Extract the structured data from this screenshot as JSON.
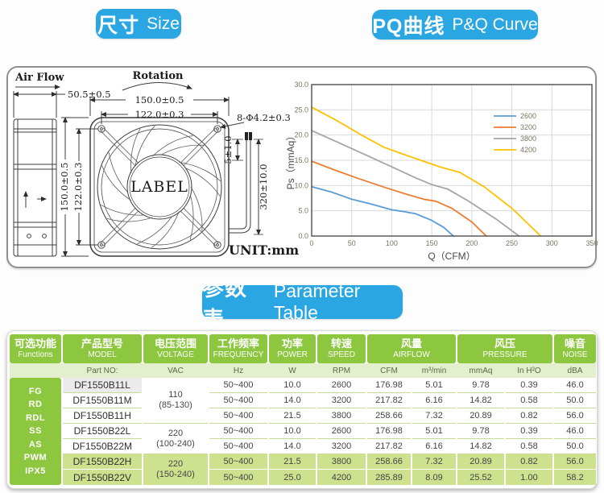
{
  "badges": {
    "size": {
      "zh": "尺寸",
      "en": "Size"
    },
    "pq": {
      "zh": "PQ曲线",
      "en": "P&Q Curve"
    },
    "param": {
      "zh": "参数表",
      "en": "Parameter Table"
    }
  },
  "colors": {
    "accent_blue": "#2aa7e2",
    "table_green": "#8dc63f",
    "units_row_green": "#e3efcd",
    "row_highlight_green": "#cde18f",
    "series_2600": "#5b9bd5",
    "series_3200": "#ed7d31",
    "series_3800": "#a5a5a5",
    "series_4200": "#ffc000"
  },
  "drawing": {
    "air_flow": "Air Flow",
    "rotation": "Rotation",
    "dim_depth": "50.5±0.5",
    "dim_outer_width": "150.0±0.5",
    "dim_hole_pitch_h": "122.0±0.3",
    "dim_holes": "8-Φ4.2±0.3",
    "dim_outer_height": "150.0±0.5",
    "dim_hole_pitch_v": "122.0±0.3",
    "dim_wire_strip": "5±1.0",
    "dim_wire_length": "320±10.0",
    "hub_label": "LABEL",
    "unit": "UNIT:mm"
  },
  "chart_data": {
    "type": "line",
    "xlabel": "Q（CFM）",
    "ylabel": "Ps（mmAq）",
    "xlim": [
      0,
      350
    ],
    "ylim": [
      0,
      30
    ],
    "xticks": [
      0,
      50,
      100,
      150,
      200,
      250,
      300,
      350
    ],
    "yticks": [
      "0.0",
      "5.0",
      "10.0",
      "15.0",
      "20.0",
      "25.0",
      "30.0"
    ],
    "grid": true,
    "legend_position": "upper-right-inside",
    "series": [
      {
        "name": "2600",
        "color": "#5b9bd5",
        "points": [
          [
            0,
            9.78
          ],
          [
            25,
            8.7
          ],
          [
            50,
            7.3
          ],
          [
            75,
            6.3
          ],
          [
            100,
            5.2
          ],
          [
            115,
            4.85
          ],
          [
            130,
            4.4
          ],
          [
            150,
            3.1
          ],
          [
            165,
            1.7
          ],
          [
            177,
            0
          ]
        ]
      },
      {
        "name": "3200",
        "color": "#ed7d31",
        "points": [
          [
            0,
            14.82
          ],
          [
            30,
            13.0
          ],
          [
            60,
            11.3
          ],
          [
            90,
            9.7
          ],
          [
            120,
            8.2
          ],
          [
            140,
            7.3
          ],
          [
            155,
            6.9
          ],
          [
            175,
            5.5
          ],
          [
            200,
            2.8
          ],
          [
            218,
            0
          ]
        ]
      },
      {
        "name": "3800",
        "color": "#a5a5a5",
        "points": [
          [
            0,
            20.89
          ],
          [
            35,
            18.4
          ],
          [
            70,
            15.9
          ],
          [
            100,
            13.7
          ],
          [
            130,
            11.5
          ],
          [
            150,
            10.2
          ],
          [
            170,
            9.3
          ],
          [
            195,
            7.0
          ],
          [
            230,
            3.4
          ],
          [
            259,
            0
          ]
        ]
      },
      {
        "name": "4200",
        "color": "#ffc000",
        "points": [
          [
            0,
            25.52
          ],
          [
            30,
            23.0
          ],
          [
            60,
            20.2
          ],
          [
            90,
            17.6
          ],
          [
            120,
            15.9
          ],
          [
            160,
            13.7
          ],
          [
            185,
            12.6
          ],
          [
            215,
            9.8
          ],
          [
            250,
            5.5
          ],
          [
            286,
            0
          ]
        ]
      }
    ]
  },
  "table": {
    "header": [
      {
        "zh": "可选功能",
        "en": "Functions",
        "span": 1
      },
      {
        "zh": "产品型号",
        "en": "MODEL",
        "span": 1
      },
      {
        "zh": "电压范围",
        "en": "VOLTAGE",
        "span": 1
      },
      {
        "zh": "工作频率",
        "en": "FREQUENCY",
        "span": 1
      },
      {
        "zh": "功率",
        "en": "POWER",
        "span": 1
      },
      {
        "zh": "转速",
        "en": "SPEED",
        "span": 1
      },
      {
        "zh": "风量",
        "en": "AIRFLOW",
        "span": 2
      },
      {
        "zh": "风压",
        "en": "PRESSURE",
        "span": 2
      },
      {
        "zh": "噪音",
        "en": "NOISE",
        "span": 1
      }
    ],
    "units": [
      "",
      "Part NO:",
      "VAC",
      "Hz",
      "W",
      "RPM",
      "CFM",
      "m³/min",
      "mmAq",
      "In H²O",
      "dBA"
    ],
    "functions": [
      "FG",
      "RD",
      "RDL",
      "SS",
      "AS",
      "PWM",
      "IPX5"
    ],
    "voltage_groups": [
      {
        "value": "110",
        "range": "(85-130)",
        "rows": 3,
        "highlight": false
      },
      {
        "value": "220",
        "range": "(100-240)",
        "rows": 2,
        "highlight": false
      },
      {
        "value": "220",
        "range": "(150-240)",
        "rows": 2,
        "highlight": true
      }
    ],
    "rows": [
      {
        "model": "DF1550B11L",
        "freq": "50~400",
        "power": "10.0",
        "speed": "2600",
        "cfm": "176.98",
        "m3min": "5.01",
        "mmaq": "9.78",
        "inh2o": "0.39",
        "dba": "46.0",
        "model_shaded": true,
        "highlight": false
      },
      {
        "model": "DF1550B11M",
        "freq": "50~400",
        "power": "14.0",
        "speed": "3200",
        "cfm": "217.82",
        "m3min": "6.16",
        "mmaq": "14.82",
        "inh2o": "0.58",
        "dba": "50.0",
        "model_shaded": false,
        "highlight": false
      },
      {
        "model": "DF1550B11H",
        "freq": "50~400",
        "power": "21.5",
        "speed": "3800",
        "cfm": "258.66",
        "m3min": "7.32",
        "mmaq": "20.89",
        "inh2o": "0.82",
        "dba": "56.0",
        "model_shaded": false,
        "highlight": false
      },
      {
        "model": "DF1550B22L",
        "freq": "50~400",
        "power": "10.0",
        "speed": "2600",
        "cfm": "176.98",
        "m3min": "5.01",
        "mmaq": "9.78",
        "inh2o": "0.39",
        "dba": "46.0",
        "model_shaded": false,
        "highlight": false
      },
      {
        "model": "DF1550B22M",
        "freq": "50~400",
        "power": "14.0",
        "speed": "3200",
        "cfm": "217.82",
        "m3min": "6.16",
        "mmaq": "14.82",
        "inh2o": "0.58",
        "dba": "50.0",
        "model_shaded": false,
        "highlight": false
      },
      {
        "model": "DF1550B22H",
        "freq": "50~400",
        "power": "21.5",
        "speed": "3800",
        "cfm": "258.66",
        "m3min": "7.32",
        "mmaq": "20.89",
        "inh2o": "0.82",
        "dba": "56.0",
        "model_shaded": false,
        "highlight": true
      },
      {
        "model": "DF1550B22V",
        "freq": "50~400",
        "power": "25.0",
        "speed": "4200",
        "cfm": "285.89",
        "m3min": "8.09",
        "mmaq": "25.52",
        "inh2o": "1.00",
        "dba": "58.2",
        "model_shaded": false,
        "highlight": true
      }
    ]
  }
}
